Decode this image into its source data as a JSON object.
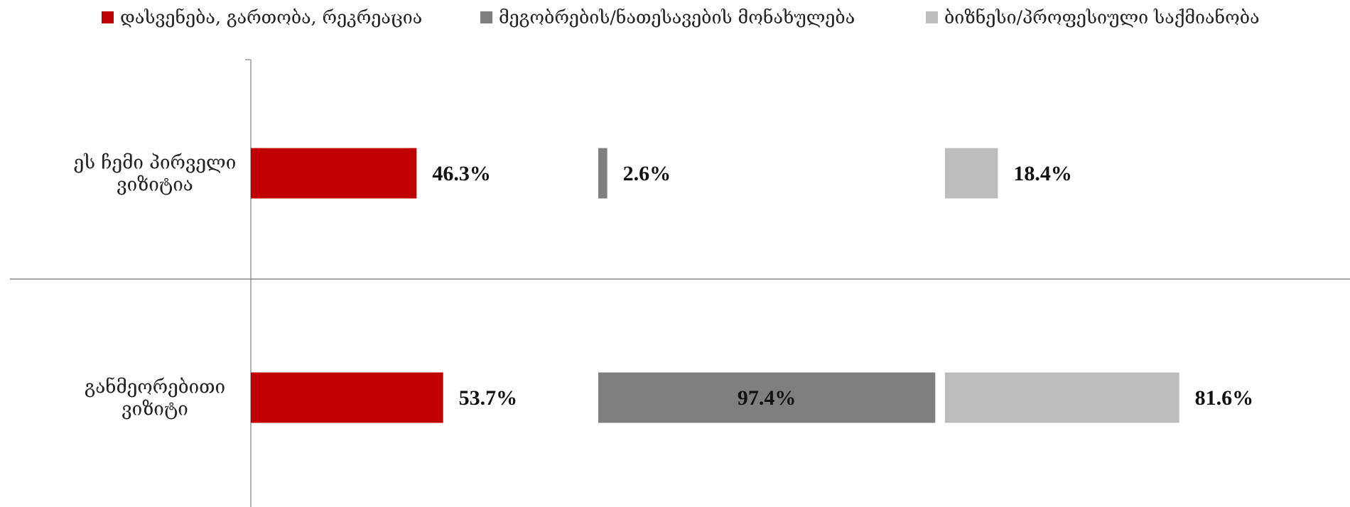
{
  "chart_data": {
    "type": "bar",
    "orientation": "horizontal",
    "layout": "panels-per-series",
    "categories": [
      [
        "ეს ჩემი პირველი",
        "ვიზიტია"
      ],
      [
        "განმეორებითი",
        "ვიზიტი"
      ]
    ],
    "series": [
      {
        "name": "დასვენება, გართობა, რეკრეაცია",
        "color": "#C00000",
        "values": [
          46.3,
          53.7
        ],
        "labels": [
          "46.3%",
          "53.7%"
        ]
      },
      {
        "name": "მეგობრების/ნათესავების მონახულება",
        "color": "#7F7F7F",
        "values": [
          2.6,
          97.4
        ],
        "labels": [
          "2.6%",
          "97.4%"
        ]
      },
      {
        "name": "ბიზნესი/პროფესიული საქმიანობა",
        "color": "#BDBDBD",
        "values": [
          18.4,
          81.6
        ],
        "labels": [
          "18.4%",
          "81.6%"
        ]
      }
    ],
    "xlim": [
      0,
      100
    ],
    "legend": "top",
    "grid": false,
    "title": "",
    "xlabel": "",
    "ylabel": ""
  }
}
